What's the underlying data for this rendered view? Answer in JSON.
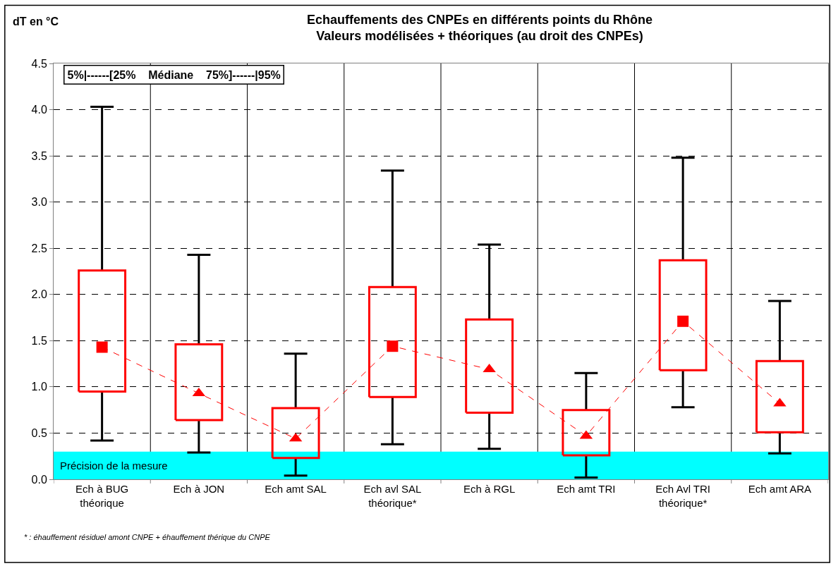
{
  "chart_data": {
    "type": "box",
    "title": "Echauffements des CNPEs en différents points du Rhône\nValeurs modélisées + théoriques (au droit des CNPEs)",
    "ylabel": "dT en °C",
    "categories": [
      "Ech à BUG\nthéorique",
      "Ech à JON",
      "Ech amt SAL",
      "Ech avl SAL\nthéorique*",
      "Ech à RGL",
      "Ech amt TRI",
      "Ech Avl TRI\nthéorique*",
      "Ech amt ARA"
    ],
    "series": [
      {
        "color": "#ff0000",
        "marker": "square",
        "boxes": [
          {
            "low": 0.42,
            "q1": 0.95,
            "median": 1.43,
            "q3": 2.26,
            "high": 4.03
          },
          null,
          null,
          {
            "low": 0.38,
            "q1": 0.89,
            "median": 1.44,
            "q3": 2.08,
            "high": 3.34
          },
          null,
          null,
          {
            "low": 0.78,
            "q1": 1.18,
            "median": 1.71,
            "q3": 2.37,
            "high": 3.48
          },
          null
        ]
      },
      {
        "color": "#ff0000",
        "marker": "triangle",
        "boxes": [
          null,
          {
            "low": 0.29,
            "q1": 0.64,
            "median": 0.93,
            "q3": 1.46,
            "high": 2.43
          },
          {
            "low": 0.04,
            "q1": 0.23,
            "median": 0.44,
            "q3": 0.77,
            "high": 1.36
          },
          null,
          {
            "low": 0.33,
            "q1": 0.72,
            "median": 1.19,
            "q3": 1.73,
            "high": 2.54
          },
          {
            "low": 0.02,
            "q1": 0.26,
            "median": 0.47,
            "q3": 0.75,
            "high": 1.15
          },
          null,
          {
            "low": 0.28,
            "q1": 0.51,
            "median": 0.82,
            "q3": 1.28,
            "high": 1.93
          }
        ]
      },
      {
        "type": "line",
        "color": "#ff0000",
        "line_style": "dashed",
        "marker": "none",
        "values": [
          1.43,
          0.93,
          0.44,
          1.44,
          1.19,
          0.47,
          1.71,
          0.82
        ]
      }
    ],
    "ylim": [
      0,
      4.5
    ],
    "yticks": [
      {
        "value": 0,
        "label": "0.0"
      },
      {
        "value": 0.5,
        "label": "0.5"
      },
      {
        "value": 1,
        "label": "1.0"
      },
      {
        "value": 1.5,
        "label": "1.5"
      },
      {
        "value": 2,
        "label": "2.0"
      },
      {
        "value": 2.5,
        "label": "2.5"
      },
      {
        "value": 3,
        "label": "3.0"
      },
      {
        "value": 3.5,
        "label": "3.5"
      },
      {
        "value": 4,
        "label": "4.0"
      },
      {
        "value": 4.5,
        "label": "4.5"
      }
    ],
    "bands": [
      {
        "axis": "y",
        "from": 0,
        "to": 0.3,
        "label": "Précision de la mesure",
        "color": "#00ffff"
      }
    ],
    "grid": true,
    "annotations": [
      "5%|------[25%    Médiane    75%]------|95%",
      "* : éhauffement résiduel amont CNPE + éhauffement thérique du CNPE"
    ]
  }
}
